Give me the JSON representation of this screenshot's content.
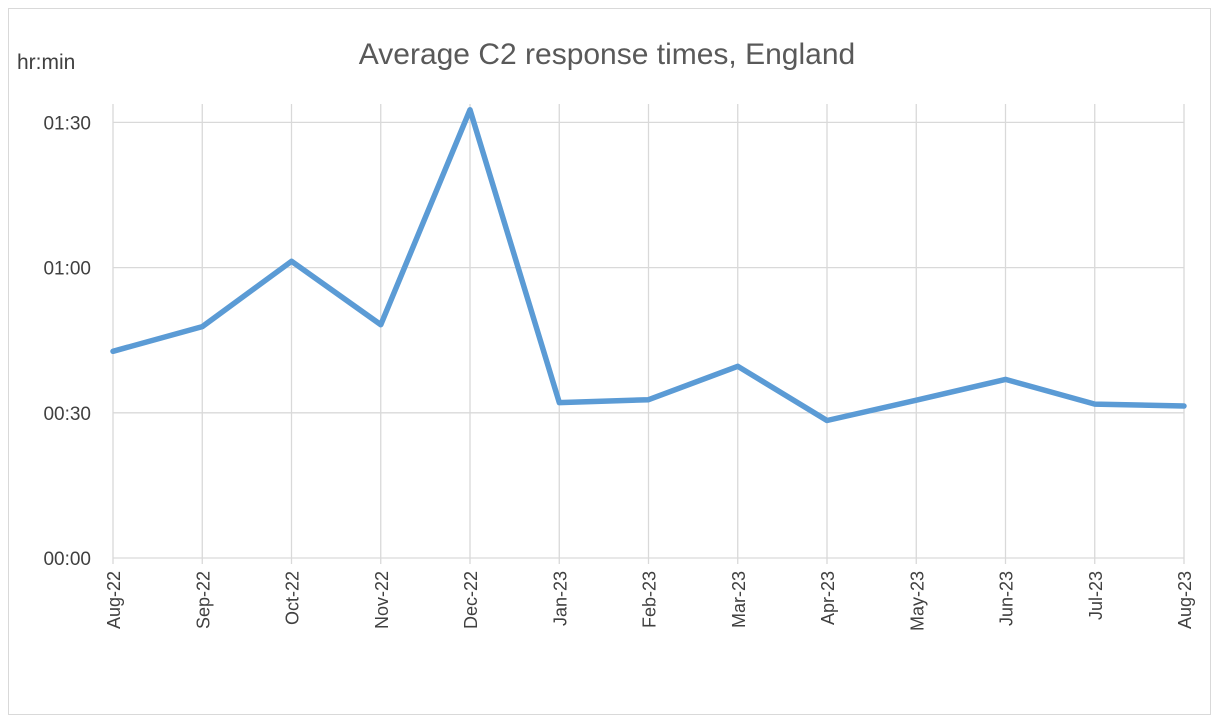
{
  "chart_data": {
    "type": "line",
    "title": "Average C2 response times, England",
    "ylabel": "hr:min",
    "xlabel": "",
    "categories": [
      "Aug-22",
      "Sep-22",
      "Oct-22",
      "Nov-22",
      "Dec-22",
      "Jan-23",
      "Feb-23",
      "Mar-23",
      "Apr-23",
      "May-23",
      "Jun-23",
      "Jul-23",
      "Aug-23"
    ],
    "series": [
      {
        "values": [
          42.7,
          47.8,
          61.3,
          48.2,
          92.6,
          32.1,
          32.7,
          39.6,
          28.4,
          32.6,
          36.9,
          31.8,
          31.4
        ],
        "color": "#5b9bd5"
      }
    ],
    "y_ticks": [
      "00:00",
      "00:30",
      "01:00",
      "01:30"
    ],
    "y_tick_values": [
      0,
      30,
      60,
      90
    ],
    "y_unit": "minutes",
    "ylim": [
      0,
      93
    ],
    "grid": true,
    "legend": "none"
  }
}
